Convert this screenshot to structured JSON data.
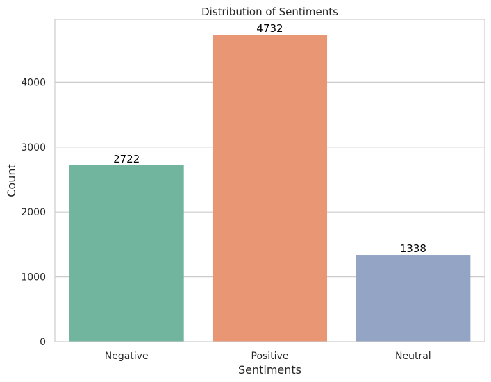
{
  "chart_data": {
    "type": "bar",
    "title": "Distribution of Sentiments",
    "xlabel": "Sentiments",
    "ylabel": "Count",
    "categories": [
      "Negative",
      "Positive",
      "Neutral"
    ],
    "values": [
      2722,
      4732,
      1338
    ],
    "data_labels": [
      "2722",
      "4732",
      "1338"
    ],
    "colors": [
      "#72b59f",
      "#e89673",
      "#94a4c4"
    ],
    "ylim": [
      0,
      4968
    ],
    "yticks": [
      0,
      1000,
      2000,
      3000,
      4000
    ],
    "ytick_labels": [
      "0",
      "1000",
      "2000",
      "3000",
      "4000"
    ],
    "grid": "horizontal",
    "legend": "none"
  }
}
